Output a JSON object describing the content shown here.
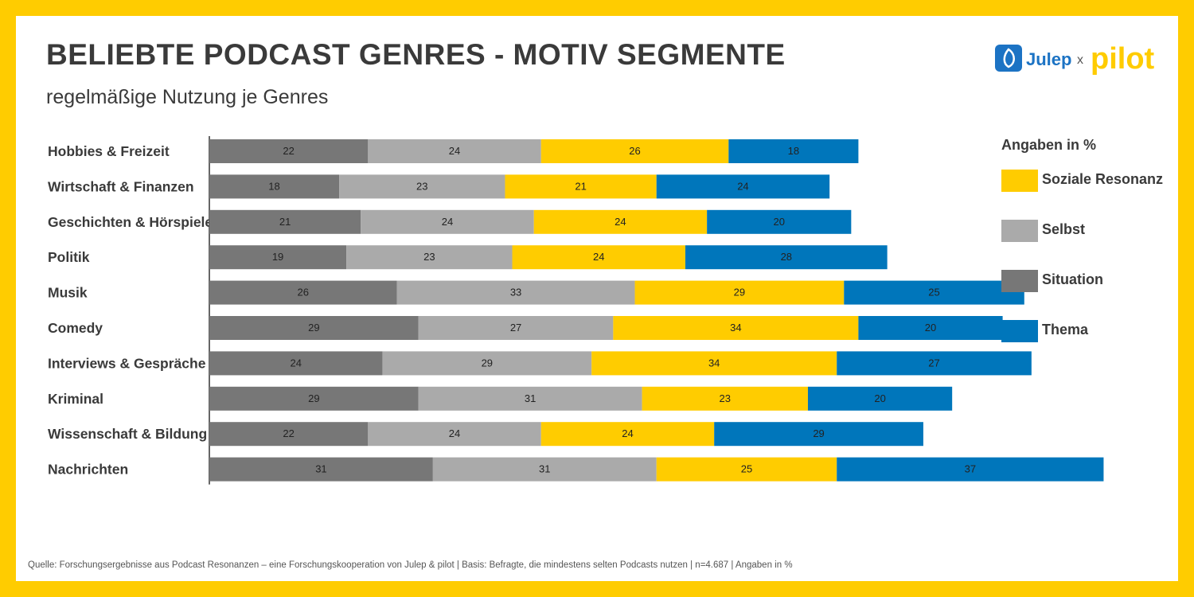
{
  "header": {
    "title": "BELIEBTE PODCAST GENRES - MOTIV SEGMENTE",
    "subtitle": "regelmäßige Nutzung je Genres"
  },
  "logo": {
    "left": "Julep",
    "x": "x",
    "right": "pilot"
  },
  "legend": {
    "title": "Angaben in %",
    "items": [
      {
        "label": "Soziale Resonanz",
        "color": "#FFCC00"
      },
      {
        "label": "Selbst",
        "color": "#AAAAAA"
      },
      {
        "label": "Situation",
        "color": "#777777"
      },
      {
        "label": "Thema",
        "color": "#0076BB"
      }
    ]
  },
  "source": "Quelle: Forschungsergebnisse aus Podcast Resonanzen – eine Forschungskooperation von Julep & pilot | Basis: Befragte, die mindestens selten Podcasts nutzen | n=4.687 | Angaben in %",
  "chart_data": {
    "type": "bar",
    "orientation": "horizontal",
    "stacked": true,
    "categories": [
      "Hobbies & Freizeit",
      "Wirtschaft & Finanzen",
      "Geschichten & Hörspiele",
      "Politik",
      "Musik",
      "Comedy",
      "Interviews & Gespräche",
      "Kriminal",
      "Wissenschaft & Bildung",
      "Nachrichten"
    ],
    "series": [
      {
        "name": "Situation",
        "color": "#777777",
        "values": [
          22,
          18,
          21,
          19,
          26,
          29,
          24,
          29,
          22,
          31
        ]
      },
      {
        "name": "Selbst",
        "color": "#AAAAAA",
        "values": [
          24,
          23,
          24,
          23,
          33,
          27,
          29,
          31,
          24,
          31
        ]
      },
      {
        "name": "Soziale Resonanz",
        "color": "#FFCC00",
        "values": [
          26,
          21,
          24,
          24,
          29,
          34,
          34,
          23,
          24,
          25
        ]
      },
      {
        "name": "Thema",
        "color": "#0076BB",
        "values": [
          18,
          24,
          20,
          28,
          25,
          20,
          27,
          20,
          29,
          37
        ]
      }
    ],
    "legend_position": "right",
    "grid": false
  }
}
